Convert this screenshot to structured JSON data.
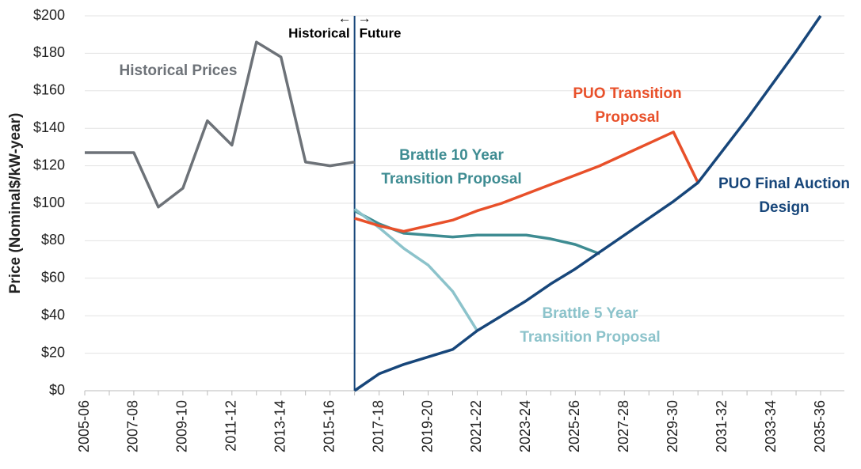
{
  "chart_data": {
    "type": "line",
    "ylabel": "Price (Nominal$/kW-year)",
    "categories": [
      "2005-06",
      null,
      "2007-08",
      null,
      "2009-10",
      null,
      "2011-12",
      null,
      "2013-14",
      null,
      "2015-16",
      null,
      "2017-18",
      null,
      "2019-20",
      null,
      "2021-22",
      null,
      "2023-24",
      null,
      "2025-26",
      null,
      "2027-28",
      null,
      "2029-30",
      null,
      "2031-32",
      null,
      "2033-34",
      null,
      "2035-36"
    ],
    "series": [
      {
        "name": [
          "Historical Prices"
        ],
        "color": "#6d7278",
        "values": [
          127,
          127,
          127,
          98,
          108,
          144,
          131,
          186,
          178,
          122,
          120,
          122,
          null,
          null,
          null,
          null,
          null,
          null,
          null,
          null,
          null,
          null,
          null,
          null,
          null,
          null,
          null,
          null,
          null,
          null,
          null
        ]
      },
      {
        "name": [
          "Brattle 10 Year",
          "Transition Proposal"
        ],
        "color": "#3e8c92",
        "values": [
          null,
          null,
          null,
          null,
          null,
          null,
          null,
          null,
          null,
          null,
          null,
          96,
          89,
          84,
          83,
          82,
          83,
          83,
          83,
          81,
          78,
          73,
          null,
          null,
          null,
          null,
          null,
          null,
          null,
          null,
          null
        ]
      },
      {
        "name": [
          "Brattle 5 Year",
          "Transition Proposal"
        ],
        "color": "#8cc3cb",
        "values": [
          null,
          null,
          null,
          null,
          null,
          null,
          null,
          null,
          null,
          null,
          null,
          97,
          87,
          76,
          67,
          53,
          32,
          null,
          null,
          null,
          null,
          null,
          null,
          null,
          null,
          null,
          null,
          null,
          null,
          null,
          null
        ]
      },
      {
        "name": [
          "PUO Transition",
          "Proposal"
        ],
        "color": "#e8502a",
        "values": [
          null,
          null,
          null,
          null,
          null,
          null,
          null,
          null,
          null,
          null,
          null,
          92,
          88,
          85,
          88,
          91,
          96,
          100,
          105,
          110,
          115,
          120,
          126,
          132,
          138,
          111,
          null,
          null,
          null,
          null,
          null
        ]
      },
      {
        "name": [
          "PUO Final Auction",
          "Design"
        ],
        "color": "#17467a",
        "values": [
          null,
          null,
          null,
          null,
          null,
          null,
          null,
          null,
          null,
          null,
          null,
          0,
          9,
          14,
          18,
          22,
          32,
          40,
          48,
          57,
          65,
          74,
          83,
          92,
          101,
          111,
          128,
          145,
          163,
          181,
          200
        ]
      }
    ],
    "divider": {
      "index": 11,
      "left": "Historical",
      "right": "Future",
      "left_arrow": "←",
      "right_arrow": "→"
    },
    "ylim": [
      0,
      200
    ],
    "yticks": [
      {
        "value": 0,
        "label": "$0"
      },
      {
        "value": 20,
        "label": "$20"
      },
      {
        "value": 40,
        "label": "$40"
      },
      {
        "value": 60,
        "label": "$60"
      },
      {
        "value": 80,
        "label": "$80"
      },
      {
        "value": 100,
        "label": "$100"
      },
      {
        "value": 120,
        "label": "$120"
      },
      {
        "value": 140,
        "label": "$140"
      },
      {
        "value": 160,
        "label": "$160"
      },
      {
        "value": 180,
        "label": "$180"
      },
      {
        "value": 200,
        "label": "$200"
      }
    ],
    "grid": true
  }
}
